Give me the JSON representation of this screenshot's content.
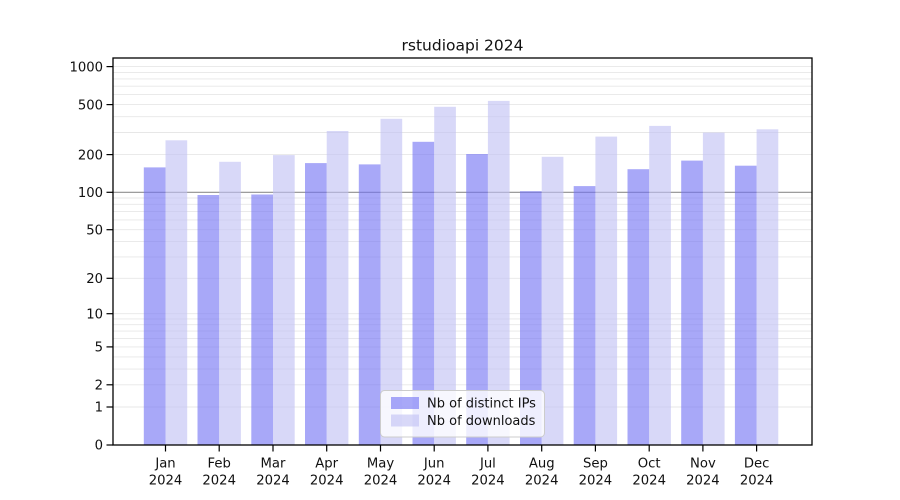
{
  "title": "rstudioapi 2024",
  "chart_data": {
    "type": "bar",
    "title": "rstudioapi 2024",
    "categories": [
      "Jan 2024",
      "Feb 2024",
      "Mar 2024",
      "Apr 2024",
      "May 2024",
      "Jun 2024",
      "Jul 2024",
      "Aug 2024",
      "Sep 2024",
      "Oct 2024",
      "Nov 2024",
      "Dec 2024"
    ],
    "series": [
      {
        "name": "Nb of distinct IPs",
        "color": "#7373f4",
        "values": [
          158,
          95,
          96,
          171,
          167,
          253,
          202,
          102,
          112,
          153,
          179,
          163
        ]
      },
      {
        "name": "Nb of downloads",
        "color": "#c0c0f4",
        "values": [
          260,
          175,
          198,
          308,
          385,
          480,
          535,
          192,
          278,
          338,
          299,
          318
        ]
      }
    ],
    "y_scale": "log1p",
    "y_ticks": [
      0,
      1,
      2,
      5,
      10,
      20,
      50,
      100,
      200,
      500,
      1000
    ],
    "ylim": [
      0,
      1180
    ],
    "xlabel": "",
    "ylabel": "",
    "grid": true,
    "highlight_gridline_value": 100,
    "legend_position": "lower center"
  },
  "colors": {
    "grid_minor": "#e7e7e7",
    "grid_major": "#8f8f8f",
    "axis": "#000000",
    "background": "#ffffff",
    "legend_border": "#cccccc",
    "legend_fill": "#ffffff"
  }
}
